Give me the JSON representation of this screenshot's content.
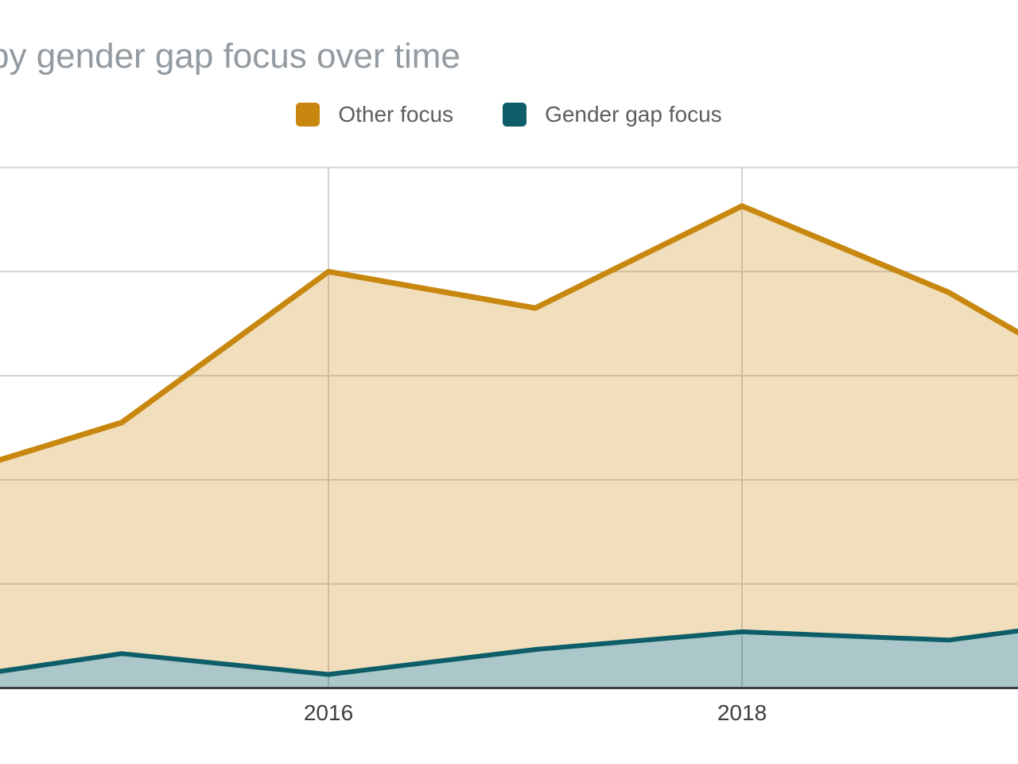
{
  "title": "by gender gap focus over time",
  "legend": {
    "items": [
      {
        "label": "Other focus",
        "color": "#C8870F"
      },
      {
        "label": "Gender gap focus",
        "color": "#0D5E68"
      }
    ]
  },
  "colors": {
    "orange_line": "#C8870F",
    "orange_fill": "rgba(200,135,15,0.28)",
    "teal_line": "#0D5E68",
    "teal_fill": "rgba(13,94,104,0.35)",
    "gridline": "#D2D2D2",
    "axis_line": "#3A4045",
    "tick_label": "#3C4043",
    "title": "#939BA0",
    "legend_text": "#5B5E61"
  },
  "chart_data": {
    "type": "area",
    "stacked": true,
    "title": "by gender gap focus over time (cropped at left)",
    "xlabel": "",
    "ylabel": "",
    "x_tick_labels": [
      "2016",
      "2018"
    ],
    "x_tick_years": [
      2016,
      2018
    ],
    "x": [
      2014.41,
      2015,
      2016,
      2017,
      2018,
      2019,
      2019.34
    ],
    "series": [
      {
        "name": "Other focus",
        "values": [
          2.19,
          2.55,
          4.0,
          3.65,
          4.63,
          3.8,
          3.41
        ]
      },
      {
        "name": "Gender gap focus",
        "values": [
          0.16,
          0.33,
          0.13,
          0.37,
          0.54,
          0.46,
          0.55
        ]
      }
    ],
    "ylim": [
      0,
      5
    ],
    "y_gridline_step": 1,
    "y_axis_labels_visible": false,
    "grid": true,
    "legend_position": "top"
  }
}
